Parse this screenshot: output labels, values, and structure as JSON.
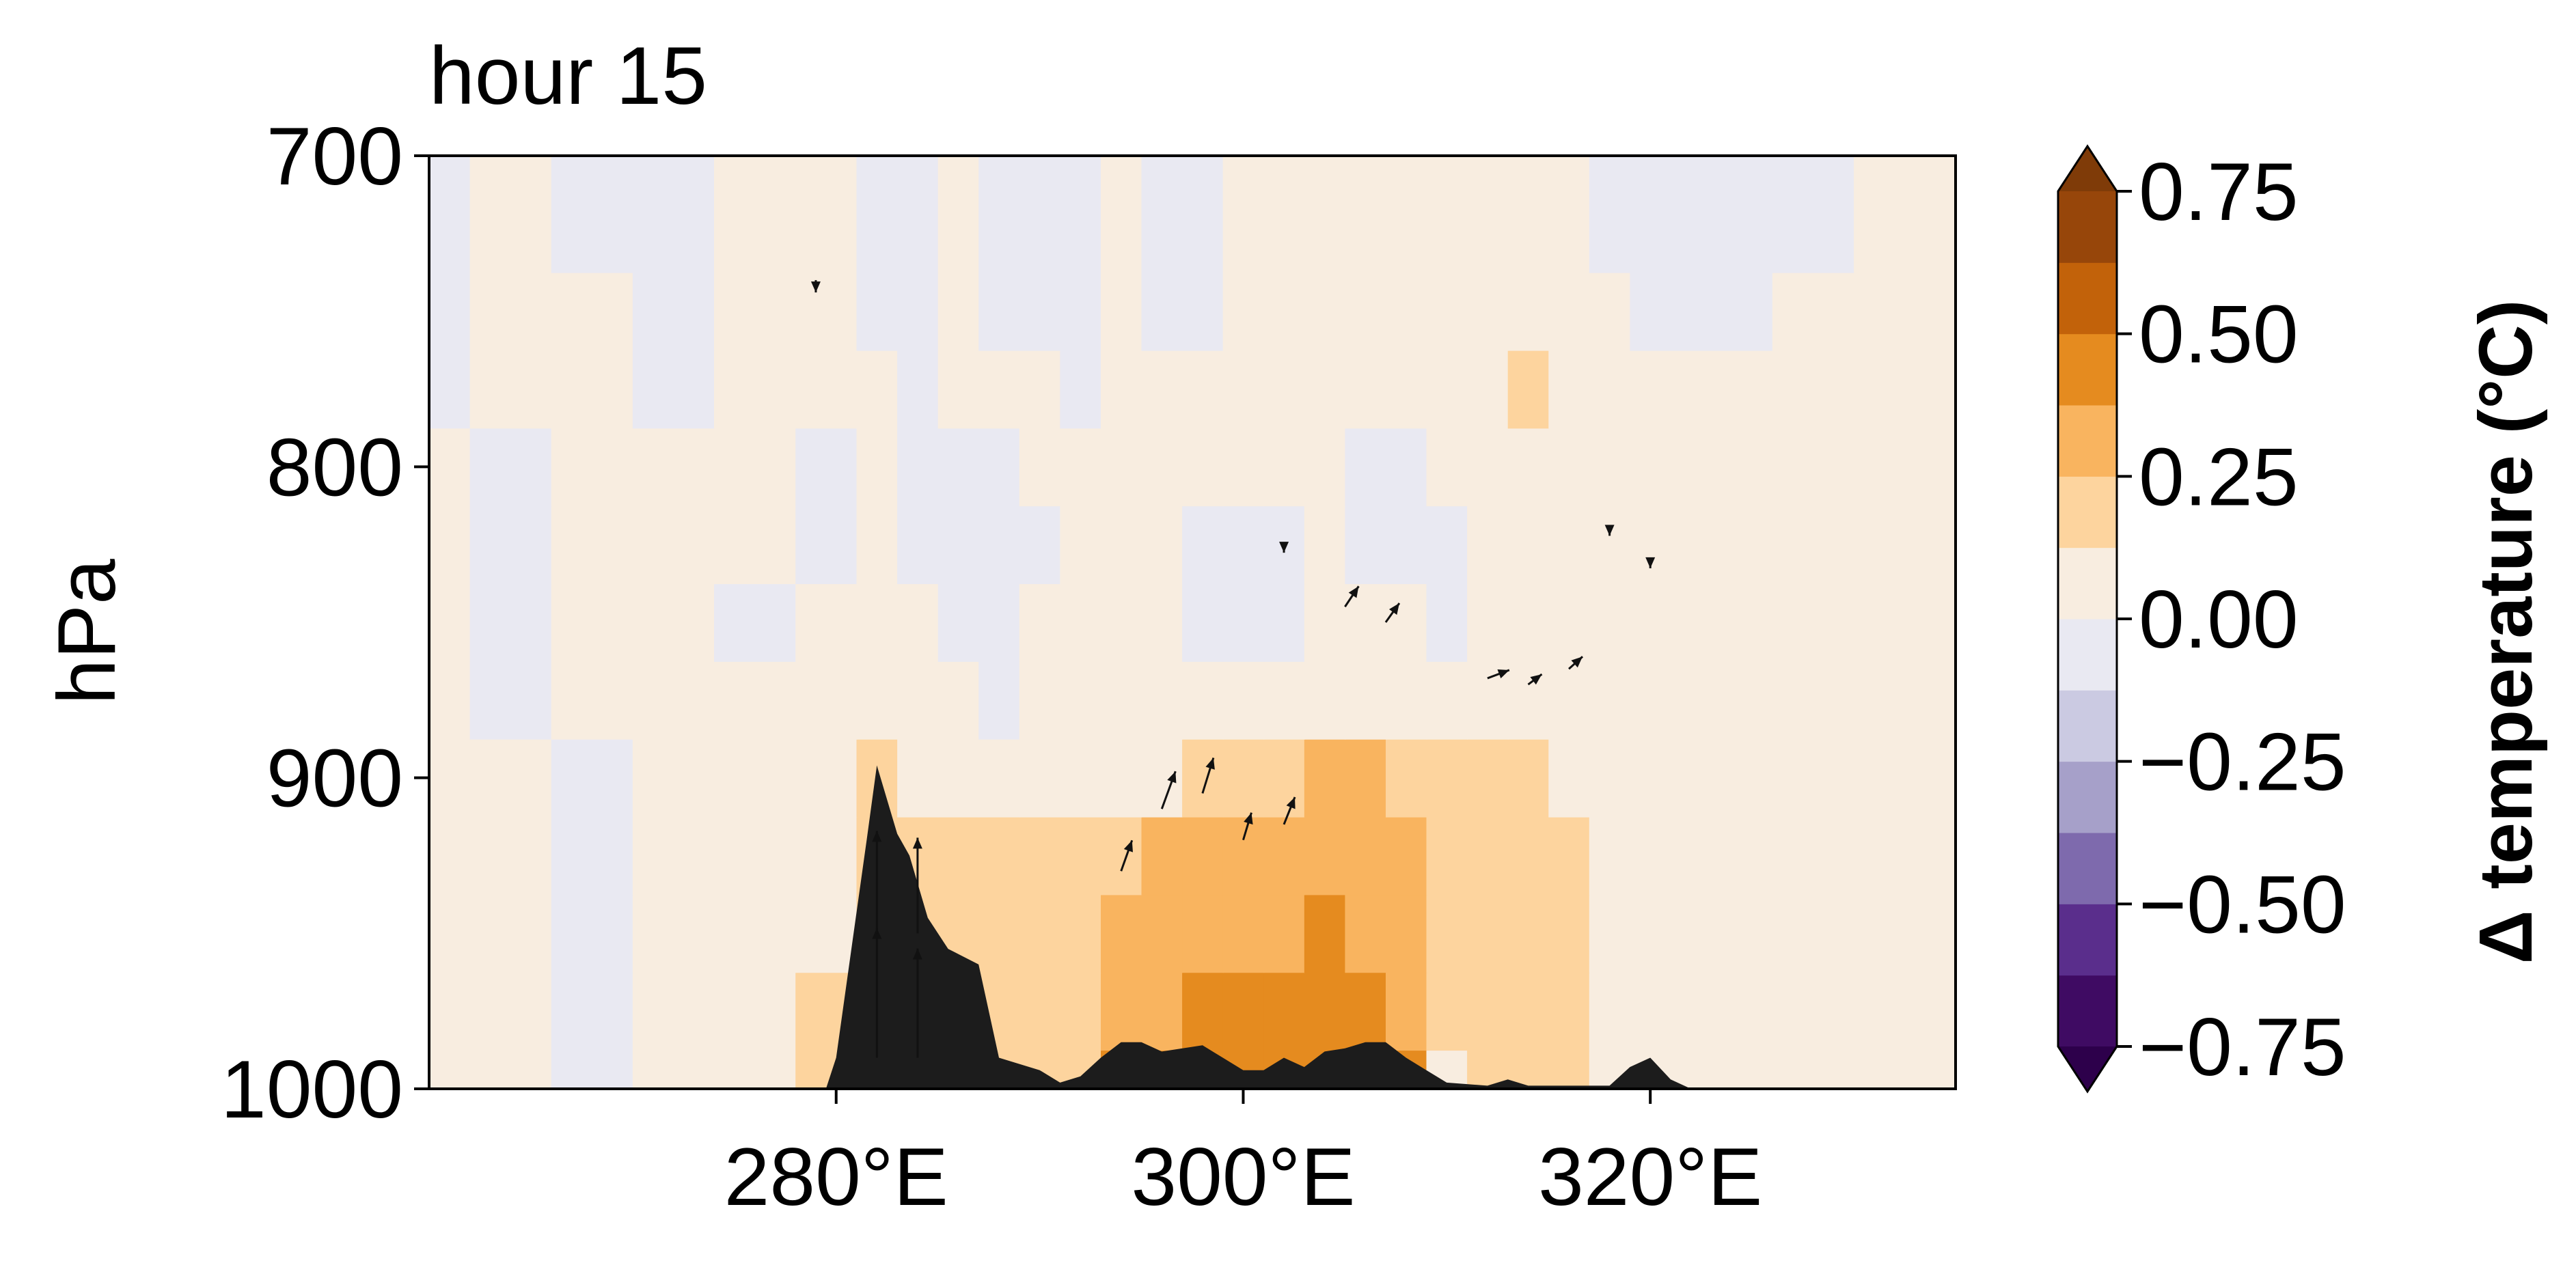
{
  "chart_data": {
    "type": "heatmap",
    "title": "hour 15",
    "xlabel": "",
    "ylabel": "hPa",
    "xlim": [
      260,
      335
    ],
    "ylim": [
      1000,
      700
    ],
    "x_ticks": [
      280,
      300,
      320
    ],
    "x_tick_labels": [
      "280°E",
      "300°E",
      "320°E"
    ],
    "y_ticks": [
      700,
      800,
      900,
      1000
    ],
    "y_tick_labels": [
      "700",
      "800",
      "900",
      "1000"
    ],
    "colorbar": {
      "label": "Δ temperature (°C)",
      "ticks": [
        0.75,
        0.5,
        0.25,
        0.0,
        -0.25,
        -0.5,
        -0.75
      ],
      "tick_labels": [
        "0.75",
        "0.50",
        "0.25",
        "0.00",
        "−0.25",
        "−0.50",
        "−0.75"
      ],
      "levels": [
        -0.75,
        -0.625,
        -0.5,
        -0.375,
        -0.25,
        -0.125,
        0.0,
        0.125,
        0.25,
        0.375,
        0.5,
        0.625,
        0.75
      ],
      "colors": [
        "#3f0b63",
        "#5a2e8c",
        "#7e6aad",
        "#a6a0c9",
        "#cbcae2",
        "#e9e9f2",
        "#f8ede0",
        "#fdd49e",
        "#f9b45f",
        "#e58b1f",
        "#c2620a",
        "#97460a"
      ],
      "under_color": "#2d004b",
      "over_color": "#7f3b08",
      "extend": "both"
    },
    "temperature_field": {
      "x": [
        260,
        264,
        268,
        272,
        276,
        280,
        282,
        284,
        286,
        288,
        290,
        292,
        294,
        296,
        298,
        300,
        302,
        304,
        306,
        308,
        310,
        312,
        314,
        316,
        318,
        320,
        324,
        328,
        332,
        335
      ],
      "y": [
        1000,
        975,
        950,
        925,
        900,
        875,
        850,
        825,
        800,
        775,
        750,
        725,
        700
      ],
      "z": [
        [
          0.0,
          0.05,
          -0.05,
          0.05,
          0.1,
          0.15,
          0.15,
          0.2,
          0.2,
          0.2,
          0.2,
          0.2,
          0.38,
          0.4,
          0.45,
          0.45,
          0.47,
          0.45,
          0.42,
          0.38,
          0.1,
          0.2,
          0.2,
          0.15,
          0.1,
          0.05,
          0.05,
          0.05,
          0.0,
          0.05
        ],
        [
          0.0,
          0.05,
          -0.05,
          0.05,
          0.1,
          0.15,
          0.15,
          0.15,
          0.2,
          0.2,
          0.2,
          0.2,
          0.35,
          0.36,
          0.38,
          0.38,
          0.4,
          0.4,
          0.38,
          0.35,
          0.2,
          0.2,
          0.2,
          0.15,
          0.1,
          0.05,
          0.05,
          0.05,
          0.0,
          0.05
        ],
        [
          0.05,
          0.05,
          -0.05,
          0.05,
          0.08,
          0.12,
          0.15,
          0.15,
          0.15,
          0.2,
          0.2,
          0.2,
          0.32,
          0.34,
          0.35,
          0.36,
          0.37,
          0.38,
          0.36,
          0.34,
          0.2,
          0.2,
          0.2,
          0.15,
          0.1,
          0.05,
          0.05,
          0.05,
          0.0,
          0.05
        ],
        [
          0.05,
          0.05,
          -0.05,
          0.05,
          0.08,
          0.1,
          0.15,
          0.15,
          0.15,
          0.15,
          0.15,
          0.15,
          0.2,
          0.3,
          0.32,
          0.34,
          0.35,
          0.36,
          0.34,
          0.3,
          0.2,
          0.2,
          0.2,
          0.15,
          0.1,
          0.05,
          0.05,
          0.05,
          0.0,
          0.05
        ],
        [
          0.05,
          0.05,
          -0.05,
          0.05,
          0.05,
          0.08,
          0.14,
          0.1,
          0.08,
          0.08,
          0.08,
          0.08,
          0.1,
          0.12,
          0.14,
          0.15,
          0.2,
          0.3,
          0.3,
          0.2,
          0.15,
          0.15,
          0.15,
          0.1,
          0.05,
          0.05,
          0.05,
          0.05,
          0.0,
          0.05
        ],
        [
          0.05,
          -0.05,
          0.05,
          0.05,
          0.05,
          0.05,
          0.05,
          0.05,
          0.05,
          -0.05,
          0.05,
          0.05,
          0.05,
          0.05,
          0.05,
          0.05,
          0.05,
          0.1,
          0.05,
          0.05,
          0.05,
          0.05,
          0.05,
          0.05,
          0.05,
          0.05,
          0.05,
          0.05,
          0.05,
          0.05
        ],
        [
          0.05,
          -0.05,
          0.05,
          0.05,
          -0.05,
          0.05,
          0.05,
          0.05,
          -0.05,
          -0.05,
          0.05,
          0.05,
          0.05,
          0.05,
          -0.05,
          -0.05,
          -0.05,
          0.05,
          0.05,
          0.05,
          -0.05,
          0.05,
          0.05,
          0.05,
          0.05,
          0.05,
          0.05,
          0.05,
          0.05,
          0.05
        ],
        [
          0.05,
          -0.05,
          0.05,
          0.05,
          0.05,
          -0.05,
          0.05,
          -0.05,
          -0.05,
          -0.05,
          -0.05,
          0.05,
          0.05,
          0.05,
          -0.05,
          -0.05,
          -0.05,
          0.05,
          -0.05,
          -0.05,
          -0.05,
          0.05,
          0.05,
          0.05,
          0.05,
          0.05,
          0.05,
          0.05,
          0.05,
          0.05
        ],
        [
          0.05,
          -0.05,
          0.05,
          0.05,
          0.05,
          -0.05,
          0.05,
          -0.05,
          -0.05,
          -0.05,
          0.05,
          0.05,
          0.05,
          0.05,
          0.05,
          0.05,
          0.05,
          0.05,
          -0.05,
          -0.05,
          0.05,
          0.05,
          0.05,
          0.05,
          0.05,
          0.05,
          0.05,
          0.05,
          0.05,
          0.05
        ],
        [
          -0.05,
          0.05,
          0.05,
          -0.05,
          0.05,
          0.05,
          0.05,
          -0.05,
          0.05,
          0.05,
          0.05,
          -0.05,
          0.05,
          0.05,
          0.05,
          0.05,
          0.05,
          0.05,
          0.05,
          0.05,
          0.05,
          0.05,
          0.15,
          0.05,
          0.05,
          0.05,
          0.05,
          0.05,
          0.05,
          0.05
        ],
        [
          -0.05,
          0.05,
          0.05,
          -0.05,
          0.05,
          0.05,
          -0.05,
          -0.05,
          0.05,
          -0.05,
          -0.05,
          -0.05,
          0.05,
          -0.05,
          -0.05,
          0.05,
          0.05,
          0.05,
          0.05,
          0.05,
          0.05,
          0.05,
          0.05,
          0.05,
          0.05,
          -0.05,
          -0.05,
          0.05,
          0.05,
          0.05
        ],
        [
          -0.05,
          0.05,
          -0.05,
          -0.05,
          0.05,
          0.05,
          -0.05,
          -0.05,
          0.05,
          -0.05,
          -0.05,
          -0.05,
          0.05,
          -0.05,
          -0.05,
          0.05,
          0.05,
          0.05,
          0.05,
          0.05,
          0.05,
          0.05,
          0.05,
          0.05,
          -0.05,
          -0.05,
          -0.05,
          -0.05,
          0.05,
          0.05
        ],
        [
          -0.05,
          0.05,
          -0.05,
          -0.05,
          0.05,
          0.05,
          -0.05,
          -0.05,
          0.05,
          -0.05,
          -0.05,
          -0.05,
          0.05,
          -0.05,
          -0.05,
          0.05,
          0.05,
          0.05,
          0.05,
          0.05,
          0.05,
          0.05,
          0.05,
          0.05,
          -0.05,
          -0.05,
          -0.05,
          -0.05,
          0.05,
          0.05
        ]
      ]
    },
    "terrain": {
      "x": [
        260,
        279.5,
        280,
        281.5,
        282,
        283,
        283.6,
        284.5,
        285.5,
        287,
        288,
        290,
        291,
        292,
        293,
        294,
        295,
        296,
        298,
        299,
        300,
        301,
        302,
        303,
        304,
        305,
        306,
        307,
        308,
        309,
        310,
        312,
        313,
        314,
        316,
        318,
        319,
        320,
        321,
        322,
        324,
        335
      ],
      "pressure": [
        1000,
        1000,
        990,
        920,
        896,
        918,
        925,
        945,
        955,
        960,
        990,
        994,
        998,
        996,
        990,
        985,
        985,
        988,
        986,
        990,
        994,
        994,
        990,
        993,
        988,
        987,
        985,
        985,
        990,
        994,
        998,
        999,
        997,
        999,
        999,
        999,
        993,
        990,
        997,
        1000,
        1000,
        1000
      ],
      "color": "#1c1c1c"
    },
    "wind_vectors": [
      {
        "x": 282,
        "p": 990,
        "u": 0,
        "w": 190
      },
      {
        "x": 282,
        "p": 950,
        "u": 0,
        "w": 150
      },
      {
        "x": 284,
        "p": 990,
        "u": 0,
        "w": 160
      },
      {
        "x": 284,
        "p": 950,
        "u": 0,
        "w": 140
      },
      {
        "x": 294,
        "p": 930,
        "u": 0.4,
        "w": 45
      },
      {
        "x": 296,
        "p": 910,
        "u": 0.5,
        "w": 55
      },
      {
        "x": 298,
        "p": 905,
        "u": 0.4,
        "w": 52
      },
      {
        "x": 300,
        "p": 920,
        "u": 0.3,
        "w": 40
      },
      {
        "x": 302,
        "p": 915,
        "u": 0.4,
        "w": 40
      },
      {
        "x": 305,
        "p": 845,
        "u": 0.5,
        "w": 30
      },
      {
        "x": 307,
        "p": 850,
        "u": 0.5,
        "w": 28
      },
      {
        "x": 312,
        "p": 868,
        "u": 0.8,
        "w": 12
      },
      {
        "x": 314,
        "p": 870,
        "u": 0.5,
        "w": 15
      },
      {
        "x": 316,
        "p": 865,
        "u": 0.5,
        "w": 18
      },
      {
        "x": 279,
        "p": 740,
        "u": 0,
        "w": -18
      },
      {
        "x": 302,
        "p": 825,
        "u": 0,
        "w": -12
      },
      {
        "x": 318,
        "p": 820,
        "u": 0,
        "w": -10
      },
      {
        "x": 320,
        "p": 830,
        "u": 0,
        "w": -12
      }
    ]
  }
}
